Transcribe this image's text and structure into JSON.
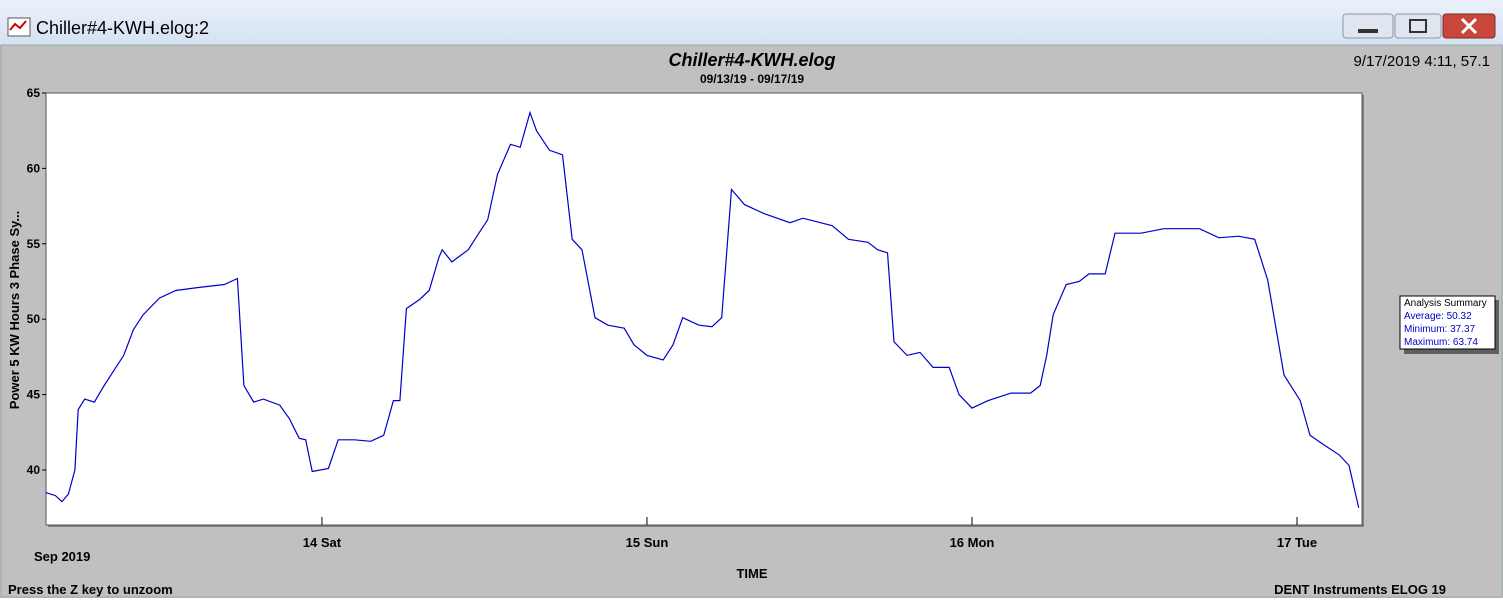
{
  "window": {
    "title": "Chiller#4-KWH.elog:2",
    "cursor_readout": "9/17/2019 4:11, 57.1",
    "status_left": "Press the Z key to unzoom",
    "status_right": "DENT Instruments ELOG 19",
    "analysis_summary": {
      "title": "Analysis Summary",
      "items": [
        "Average: 50.32",
        "Minimum: 37.37",
        "Maximum: 63.74"
      ]
    }
  },
  "chart_data": {
    "type": "line",
    "title": "Chiller#4-KWH.elog",
    "subtitle": "09/13/19 - 09/17/19",
    "y_label": "Power 5 KW Hours 3 Phase Sy...",
    "x_label": "TIME",
    "x_sublabel": "Sep 2019",
    "color": "#0000cc",
    "grid": false,
    "xlim": [
      13.151,
      17.2
    ],
    "xticks": [
      {
        "value": 14,
        "label": "14 Sat"
      },
      {
        "value": 15,
        "label": "15 Sun"
      },
      {
        "value": 16,
        "label": "16 Mon"
      },
      {
        "value": 17,
        "label": "17 Tue"
      }
    ],
    "ylim": [
      36.35,
      65
    ],
    "yticks": [
      40,
      45,
      50,
      55,
      60,
      65
    ],
    "x": [
      13.15,
      13.18,
      13.2,
      13.22,
      13.24,
      13.25,
      13.27,
      13.3,
      13.33,
      13.36,
      13.39,
      13.42,
      13.45,
      13.5,
      13.55,
      13.62,
      13.7,
      13.74,
      13.76,
      13.79,
      13.82,
      13.87,
      13.9,
      13.93,
      13.95,
      13.97,
      14.02,
      14.05,
      14.1,
      14.15,
      14.19,
      14.22,
      14.24,
      14.26,
      14.3,
      14.33,
      14.36,
      14.37,
      14.4,
      14.45,
      14.48,
      14.51,
      14.54,
      14.58,
      14.61,
      14.64,
      14.66,
      14.7,
      14.74,
      14.77,
      14.8,
      14.84,
      14.88,
      14.93,
      14.96,
      15.0,
      15.05,
      15.08,
      15.11,
      15.16,
      15.2,
      15.23,
      15.26,
      15.3,
      15.36,
      15.44,
      15.48,
      15.57,
      15.62,
      15.68,
      15.71,
      15.74,
      15.76,
      15.8,
      15.84,
      15.88,
      15.93,
      15.96,
      16.0,
      16.05,
      16.12,
      16.18,
      16.21,
      16.23,
      16.25,
      16.29,
      16.33,
      16.36,
      16.41,
      16.44,
      16.52,
      16.59,
      16.7,
      16.76,
      16.82,
      16.87,
      16.91,
      16.96,
      17.01,
      17.04,
      17.08,
      17.13,
      17.16,
      17.19
    ],
    "values": [
      38.5,
      38.3,
      37.9,
      38.4,
      40.0,
      44.0,
      44.7,
      44.5,
      45.6,
      46.6,
      47.6,
      49.3,
      50.3,
      51.4,
      51.9,
      52.1,
      52.3,
      52.7,
      45.6,
      44.5,
      44.7,
      44.3,
      43.4,
      42.1,
      42.0,
      39.9,
      40.1,
      42.0,
      42.0,
      41.9,
      42.3,
      44.6,
      44.6,
      50.7,
      51.3,
      51.9,
      54.1,
      54.6,
      53.8,
      54.6,
      55.6,
      56.6,
      59.6,
      61.6,
      61.4,
      63.7,
      62.5,
      61.2,
      60.9,
      55.3,
      54.6,
      50.1,
      49.6,
      49.4,
      48.3,
      47.6,
      47.3,
      48.3,
      50.1,
      49.6,
      49.5,
      50.1,
      58.6,
      57.6,
      57.0,
      56.4,
      56.7,
      56.2,
      55.3,
      55.1,
      54.6,
      54.4,
      48.5,
      47.6,
      47.8,
      46.8,
      46.8,
      45.0,
      44.1,
      44.6,
      45.1,
      45.1,
      45.6,
      47.6,
      50.3,
      52.3,
      52.5,
      53.0,
      53.0,
      55.7,
      55.7,
      56.0,
      56.0,
      55.4,
      55.5,
      55.3,
      52.6,
      46.3,
      44.6,
      42.3,
      41.7,
      41.0,
      40.3,
      37.5
    ]
  }
}
